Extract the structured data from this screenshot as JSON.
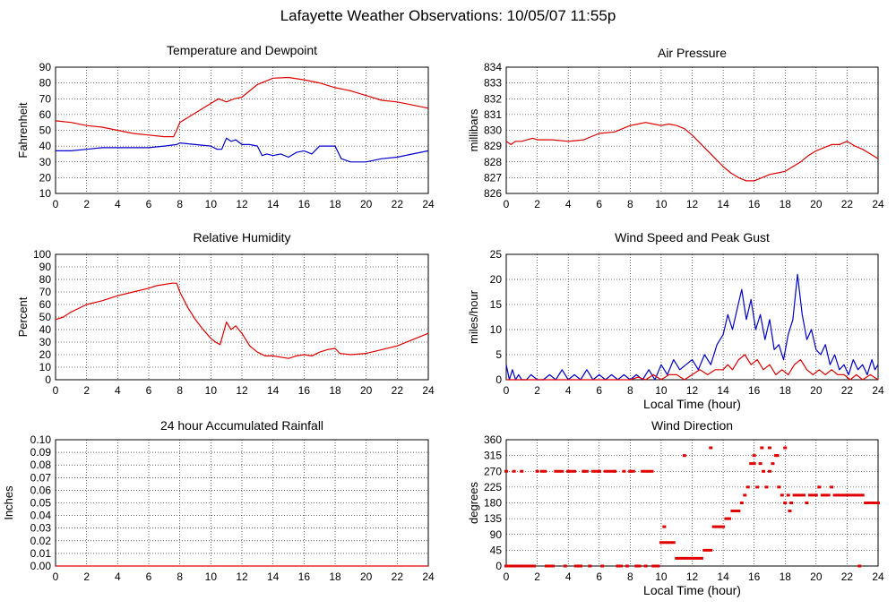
{
  "page": {
    "title": "Lafayette Weather Observations: 10/05/07 11:55p"
  },
  "colors": {
    "red": "#e00000",
    "blue": "#0000c8",
    "grid": "#000000",
    "frame": "#000000"
  },
  "chart_data": [
    {
      "id": "temp",
      "type": "line",
      "title": "Temperature and Dewpoint",
      "xlabel": "",
      "ylabel": "Fahrenheit",
      "xlim": [
        0,
        24
      ],
      "ylim": [
        10,
        90
      ],
      "xticks": [
        0,
        2,
        4,
        6,
        8,
        10,
        12,
        14,
        16,
        18,
        20,
        22,
        24
      ],
      "yticks": [
        10,
        20,
        30,
        40,
        50,
        60,
        70,
        80,
        90
      ],
      "grid": true,
      "series": [
        {
          "color": "red",
          "x": [
            0,
            1,
            2,
            3,
            4,
            5,
            6,
            7,
            7.6,
            7.8,
            8,
            9,
            10,
            10.5,
            11,
            11.5,
            12,
            13,
            14,
            15,
            16,
            17,
            18,
            19,
            20,
            21,
            22,
            23,
            24
          ],
          "y": [
            56,
            55,
            53,
            52,
            50,
            48,
            47,
            46,
            46,
            50,
            55,
            61,
            67,
            70,
            68,
            70,
            71,
            79,
            83,
            83.5,
            82,
            80,
            77,
            75,
            72,
            69,
            68,
            66,
            64
          ]
        },
        {
          "color": "blue",
          "x": [
            0,
            1,
            2,
            3,
            4,
            5,
            6,
            7,
            7.8,
            8,
            9,
            10,
            10.4,
            10.7,
            11,
            11.3,
            11.6,
            12,
            12.5,
            13,
            13.3,
            13.6,
            14,
            14.5,
            15,
            15.5,
            16,
            16.5,
            17,
            17.5,
            18,
            18.4,
            19,
            20,
            21,
            22,
            23,
            24
          ],
          "y": [
            37,
            37,
            38,
            39,
            39,
            39,
            39,
            40,
            41,
            42,
            41,
            40,
            38,
            38,
            45,
            43,
            44,
            41,
            41,
            40,
            34,
            35,
            34,
            35,
            33,
            36,
            37,
            35,
            40,
            40,
            40,
            32,
            30,
            30,
            32,
            33,
            35,
            37
          ]
        }
      ]
    },
    {
      "id": "pressure",
      "type": "line",
      "title": "Air Pressure",
      "xlabel": "",
      "ylabel": "millibars",
      "xlim": [
        0,
        24
      ],
      "ylim": [
        826,
        834
      ],
      "xticks": [
        0,
        2,
        4,
        6,
        8,
        10,
        12,
        14,
        16,
        18,
        20,
        22,
        24
      ],
      "yticks": [
        826,
        827,
        828,
        829,
        830,
        831,
        832,
        833,
        834
      ],
      "grid": true,
      "series": [
        {
          "color": "red",
          "x": [
            0,
            0.3,
            0.6,
            1,
            1.7,
            2,
            3,
            4,
            5,
            5.5,
            6,
            7,
            7.5,
            8,
            8.5,
            9,
            9.5,
            10,
            10.5,
            11,
            11.5,
            12,
            12.5,
            13,
            13.5,
            14,
            14.5,
            15,
            15.5,
            16,
            16.5,
            17,
            17.5,
            18,
            18.5,
            19,
            19.5,
            20,
            20.5,
            21,
            21.5,
            22,
            22.5,
            23,
            23.5,
            24
          ],
          "y": [
            829.3,
            829.1,
            829.3,
            829.3,
            829.5,
            829.4,
            829.4,
            829.3,
            829.4,
            829.6,
            829.8,
            829.9,
            830.1,
            830.3,
            830.4,
            830.5,
            830.4,
            830.3,
            830.4,
            830.3,
            830.1,
            829.7,
            829.2,
            828.7,
            828.2,
            827.7,
            827.3,
            827.0,
            826.8,
            826.8,
            827.0,
            827.2,
            827.3,
            827.4,
            827.7,
            828.0,
            828.4,
            828.7,
            828.9,
            829.1,
            829.1,
            829.3,
            829.0,
            828.8,
            828.5,
            828.2
          ]
        }
      ]
    },
    {
      "id": "humidity",
      "type": "line",
      "title": "Relative Humidity",
      "xlabel": "",
      "ylabel": "Percent",
      "xlim": [
        0,
        24
      ],
      "ylim": [
        0,
        100
      ],
      "xticks": [
        0,
        2,
        4,
        6,
        8,
        10,
        12,
        14,
        16,
        18,
        20,
        22,
        24
      ],
      "yticks": [
        0,
        10,
        20,
        30,
        40,
        50,
        60,
        70,
        80,
        90,
        100
      ],
      "grid": true,
      "series": [
        {
          "color": "red",
          "x": [
            0,
            0.5,
            1,
            2,
            3,
            4,
            5,
            6,
            6.5,
            7,
            7.5,
            7.8,
            8,
            8.5,
            9,
            9.5,
            10,
            10.3,
            10.6,
            11,
            11.3,
            11.6,
            12,
            12.5,
            13,
            13.5,
            14,
            14.5,
            15,
            15.5,
            16,
            16.5,
            17,
            17.5,
            18,
            18.3,
            19,
            20,
            21,
            22,
            23,
            24
          ],
          "y": [
            48,
            50,
            54,
            60,
            63,
            67,
            70,
            73,
            75,
            76,
            77,
            77,
            70,
            58,
            48,
            40,
            33,
            30,
            28,
            46,
            40,
            43,
            37,
            27,
            22,
            19,
            19,
            18,
            17,
            19,
            20,
            19,
            22,
            24,
            25,
            21,
            20,
            21,
            24,
            27,
            32,
            37
          ]
        }
      ]
    },
    {
      "id": "wind",
      "type": "line",
      "title": "Wind Speed and Peak Gust",
      "xlabel": "Local Time (hour)",
      "ylabel": "miles/hour",
      "xlim": [
        0,
        24
      ],
      "ylim": [
        0,
        25
      ],
      "xticks": [
        0,
        2,
        4,
        6,
        8,
        10,
        12,
        14,
        16,
        18,
        20,
        22,
        24
      ],
      "yticks": [
        0,
        5,
        10,
        15,
        20,
        25
      ],
      "grid": true,
      "series": [
        {
          "color": "blue",
          "x": [
            0,
            0.2,
            0.4,
            0.6,
            0.8,
            1.0,
            1.3,
            1.6,
            2.0,
            2.4,
            2.8,
            3.2,
            3.6,
            4.0,
            4.4,
            4.8,
            5.2,
            5.6,
            6.0,
            6.4,
            6.8,
            7.2,
            7.6,
            8.0,
            8.4,
            8.8,
            9.2,
            9.6,
            10.0,
            10.4,
            10.8,
            11.2,
            11.6,
            12.0,
            12.4,
            12.8,
            13.2,
            13.6,
            14.0,
            14.3,
            14.6,
            14.9,
            15.2,
            15.5,
            15.8,
            16.1,
            16.4,
            16.7,
            17.0,
            17.3,
            17.6,
            17.9,
            18.2,
            18.5,
            18.8,
            19.1,
            19.4,
            19.7,
            20.0,
            20.3,
            20.6,
            20.9,
            21.2,
            21.5,
            21.8,
            22.1,
            22.4,
            22.7,
            23.0,
            23.3,
            23.6,
            23.8,
            24.0
          ],
          "y": [
            3,
            0,
            2,
            0,
            1,
            0,
            0,
            1,
            0,
            0,
            1,
            0,
            2,
            0,
            1,
            0,
            2,
            0,
            1,
            0,
            1,
            0,
            1,
            0,
            1,
            0,
            2,
            0,
            3,
            1,
            4,
            2,
            3,
            4,
            2,
            5,
            3,
            7,
            9,
            13,
            10,
            14,
            18,
            12,
            16,
            10,
            13,
            8,
            12,
            6,
            7,
            4,
            9,
            12,
            21,
            13,
            8,
            10,
            6,
            5,
            7,
            3,
            5,
            2,
            3,
            1,
            4,
            2,
            3,
            1,
            4,
            2,
            3
          ]
        },
        {
          "color": "red",
          "x": [
            0,
            1,
            2,
            3,
            4,
            5,
            6,
            7,
            8,
            8.5,
            9,
            9.5,
            10,
            10.5,
            11,
            11.5,
            12,
            12.5,
            13,
            13.5,
            14,
            14.3,
            14.6,
            15,
            15.4,
            15.8,
            16.2,
            16.6,
            17,
            17.4,
            17.8,
            18.2,
            18.6,
            19,
            19.4,
            19.8,
            20.2,
            20.6,
            21,
            21.4,
            21.8,
            22.2,
            22.6,
            23,
            23.5,
            24
          ],
          "y": [
            0,
            0,
            0,
            0,
            0,
            0,
            0,
            0,
            0,
            0.5,
            0,
            1,
            0,
            1,
            1,
            0,
            1,
            2,
            1,
            2,
            2,
            3,
            2,
            4,
            5,
            3,
            4,
            2,
            3,
            1,
            2,
            1,
            3,
            4,
            2,
            1,
            2,
            1,
            2,
            1,
            1,
            0,
            1,
            0,
            1,
            0
          ]
        }
      ]
    },
    {
      "id": "rain",
      "type": "line",
      "title": "24 hour Accumulated Rainfall",
      "xlabel": "",
      "ylabel": "Inches",
      "xlim": [
        0,
        24
      ],
      "ylim": [
        0,
        0.1
      ],
      "xticks": [
        0,
        2,
        4,
        6,
        8,
        10,
        12,
        14,
        16,
        18,
        20,
        22,
        24
      ],
      "yticks": [
        "0.00",
        "0.01",
        "0.02",
        "0.03",
        "0.04",
        "0.05",
        "0.06",
        "0.07",
        "0.08",
        "0.09",
        "0.10"
      ],
      "grid": true,
      "series": [
        {
          "color": "red",
          "x": [
            0,
            24
          ],
          "y": [
            0,
            0
          ]
        }
      ]
    },
    {
      "id": "direction",
      "type": "scatter",
      "title": "Wind Direction",
      "xlabel": "Local Time (hour)",
      "ylabel": "degrees",
      "xlim": [
        0,
        24
      ],
      "ylim": [
        0,
        360
      ],
      "xticks": [
        0,
        2,
        4,
        6,
        8,
        10,
        12,
        14,
        16,
        18,
        20,
        22,
        24
      ],
      "yticks": [
        0,
        45,
        90,
        135,
        180,
        225,
        270,
        315,
        360
      ],
      "grid": true,
      "series": [
        {
          "color": "red",
          "x": [
            0,
            0.2,
            0.4,
            0.6,
            0.8,
            1.0,
            1.2,
            1.4,
            1.6,
            1.8,
            2.0,
            2.3,
            2.6,
            2.8,
            3.0,
            3.2,
            3.4,
            3.6,
            3.8,
            4.0,
            4.2,
            4.4,
            4.6,
            4.8,
            5.0,
            5.2,
            5.4,
            5.6,
            5.8,
            6.0,
            6.2,
            6.4,
            6.6,
            6.8,
            7.0,
            7.2,
            7.4,
            7.6,
            7.8,
            8.0,
            8.2,
            8.4,
            8.6,
            8.8,
            9.0,
            9.2,
            9.4,
            9.6,
            9.8,
            10.0,
            10.2,
            10.4,
            10.6,
            10.8,
            11.0,
            11.2,
            11.4,
            11.6,
            11.8,
            12.0,
            12.2,
            12.4,
            12.6,
            12.8,
            13.0,
            13.2,
            13.4,
            13.6,
            13.8,
            14.0,
            14.2,
            14.4,
            14.6,
            14.8,
            15.0,
            15.2,
            15.4,
            15.6,
            15.8,
            16.0,
            16.2,
            16.4,
            16.6,
            16.8,
            17.0,
            17.2,
            17.4,
            17.6,
            17.8,
            18.0,
            18.2,
            18.4,
            18.6,
            18.8,
            19.0,
            19.2,
            19.4,
            19.6,
            19.8,
            20.0,
            20.2,
            20.4,
            20.6,
            20.8,
            21.0,
            21.2,
            21.4,
            21.6,
            21.8,
            22.0,
            22.2,
            22.4,
            22.6,
            22.8,
            23.0,
            23.2,
            23.4,
            23.6,
            23.8,
            24.0,
            0,
            0.5,
            1.0,
            2.5,
            3.0,
            4.0,
            4.5,
            5.0,
            6.0,
            7.0,
            8.0,
            9.0,
            9.5,
            10.2,
            11.5,
            13.2,
            16.0,
            16.5,
            17.0,
            17.5,
            18.0,
            18.3,
            22.8
          ],
          "y": [
            270,
            0,
            0,
            0,
            0,
            270,
            0,
            0,
            0,
            0,
            270,
            270,
            0,
            0,
            0,
            270,
            270,
            270,
            0,
            270,
            270,
            270,
            0,
            0,
            270,
            270,
            0,
            270,
            270,
            270,
            0,
            270,
            270,
            270,
            270,
            0,
            0,
            270,
            0,
            270,
            270,
            0,
            0,
            270,
            0,
            270,
            270,
            0,
            0,
            67,
            67,
            67,
            67,
            67,
            22,
            22,
            22,
            22,
            22,
            22,
            22,
            22,
            22,
            45,
            45,
            45,
            112,
            112,
            112,
            112,
            135,
            135,
            157,
            157,
            157,
            180,
            202,
            225,
            292,
            292,
            225,
            292,
            270,
            225,
            270,
            292,
            315,
            225,
            202,
            180,
            202,
            180,
            202,
            202,
            202,
            202,
            180,
            202,
            202,
            202,
            225,
            202,
            202,
            202,
            225,
            202,
            202,
            202,
            202,
            202,
            202,
            202,
            202,
            202,
            202,
            180,
            180,
            180,
            180,
            180,
            0,
            270,
            0,
            270,
            0,
            270,
            0,
            270,
            270,
            270,
            270,
            270,
            0,
            112,
            315,
            337,
            315,
            337,
            337,
            315,
            337,
            157,
            0
          ]
        }
      ]
    }
  ]
}
